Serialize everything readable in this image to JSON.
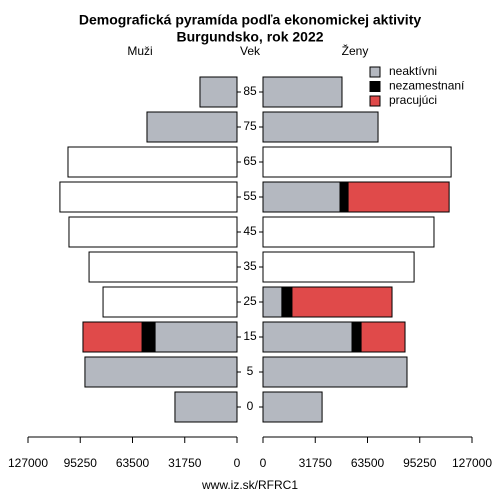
{
  "chart_data": {
    "type": "pyramid",
    "title": "Demografická pyramída podľa ekonomickej aktivity",
    "subtitle": "Burgundsko, rok 2022",
    "left_label": "Muži",
    "center_label": "Vek",
    "right_label": "Ženy",
    "footer": "www.iz.sk/RFRC1",
    "categories": [
      "0",
      "5",
      "15",
      "25",
      "35",
      "45",
      "55",
      "65",
      "75",
      "85"
    ],
    "series": [
      {
        "name": "neaktívni",
        "color": "#b4b8c0",
        "male": [
          37700,
          92400,
          49800,
          null,
          null,
          null,
          null,
          null,
          54700,
          22500
        ],
        "female": [
          35900,
          87500,
          54100,
          11500,
          null,
          null,
          46800,
          null,
          69900,
          48000
        ]
      },
      {
        "name": "nezamestnaní",
        "color": "#000000",
        "male": [
          null,
          null,
          7900,
          null,
          null,
          null,
          null,
          null,
          null,
          null
        ],
        "female": [
          null,
          null,
          5500,
          6100,
          null,
          null,
          4900,
          null,
          null,
          null
        ]
      },
      {
        "name": "pracujúci",
        "color": "#e04a4a",
        "male": [
          null,
          null,
          35900,
          null,
          null,
          null,
          null,
          null,
          null,
          null
        ],
        "female": [
          null,
          null,
          26700,
          60800,
          null,
          null,
          61400,
          null,
          null,
          null
        ]
      }
    ],
    "totals": {
      "color": "#ffffff",
      "male": [
        null,
        null,
        null,
        81400,
        89900,
        102100,
        107600,
        102700,
        null,
        null
      ],
      "female": [
        null,
        null,
        null,
        null,
        91800,
        103900,
        null,
        114300,
        null,
        null
      ]
    },
    "xlim": [
      0,
      127000
    ],
    "xticks": [
      0,
      31750,
      63500,
      95250,
      127000
    ]
  }
}
